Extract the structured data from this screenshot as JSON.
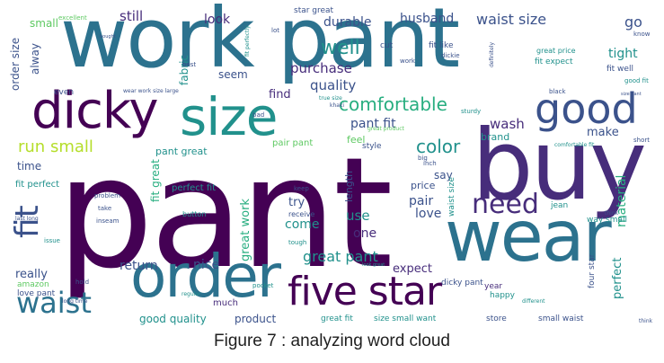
{
  "figure": {
    "caption": "Figure 7 : analyzing word cloud"
  },
  "word_cloud": {
    "palette": {
      "dark_purple": "#440154",
      "purple": "#472d7b",
      "blue": "#3b528b",
      "teal_blue": "#2c728e",
      "teal": "#21918c",
      "green_teal": "#28ae80",
      "green": "#5ec962",
      "lime": "#addc30",
      "yellow": "#b5de2b"
    },
    "words": [
      {
        "text": "pant",
        "color": "#440154"
      },
      {
        "text": "work pant",
        "color": "#2c728e"
      },
      {
        "text": "buy",
        "color": "#472d7b"
      },
      {
        "text": "wear",
        "color": "#2c728e"
      },
      {
        "text": "order",
        "color": "#2c728e"
      },
      {
        "text": "size",
        "color": "#21918c"
      },
      {
        "text": "dicky",
        "color": "#440154"
      },
      {
        "text": "five star",
        "color": "#440154"
      },
      {
        "text": "good",
        "color": "#3b528b"
      },
      {
        "text": "fit",
        "color": "#3b528b"
      },
      {
        "text": "waist",
        "color": "#2c728e"
      },
      {
        "text": "need",
        "color": "#472d7b"
      },
      {
        "text": "comfortable",
        "color": "#28ae80"
      },
      {
        "text": "color",
        "color": "#21918c"
      },
      {
        "text": "great pant",
        "color": "#21918c"
      },
      {
        "text": "run small",
        "color": "#b5de2b"
      },
      {
        "text": "well",
        "color": "#21918c"
      },
      {
        "text": "purchase",
        "color": "#472d7b"
      },
      {
        "text": "quality",
        "color": "#3b528b"
      },
      {
        "text": "pant fit",
        "color": "#3b528b"
      },
      {
        "text": "wash",
        "color": "#472d7b"
      },
      {
        "text": "waist size",
        "color": "#3b528b"
      },
      {
        "text": "durable",
        "color": "#3b528b"
      },
      {
        "text": "look",
        "color": "#472d7b"
      },
      {
        "text": "still",
        "color": "#472d7b"
      },
      {
        "text": "small",
        "color": "#5ec962"
      },
      {
        "text": "husband",
        "color": "#3b528b"
      },
      {
        "text": "star great",
        "color": "#3b528b"
      },
      {
        "text": "go",
        "color": "#3b528b"
      },
      {
        "text": "tight",
        "color": "#21918c"
      },
      {
        "text": "make",
        "color": "#3b528b"
      },
      {
        "text": "brand",
        "color": "#21918c"
      },
      {
        "text": "love",
        "color": "#3b528b"
      },
      {
        "text": "pair",
        "color": "#3b528b"
      },
      {
        "text": "use",
        "color": "#21918c"
      },
      {
        "text": "one",
        "color": "#472d7b"
      },
      {
        "text": "come",
        "color": "#21918c"
      },
      {
        "text": "try",
        "color": "#3b528b"
      },
      {
        "text": "return",
        "color": "#3b528b"
      },
      {
        "text": "nice",
        "color": "#3b528b"
      },
      {
        "text": "really",
        "color": "#3b528b"
      },
      {
        "text": "time",
        "color": "#3b528b"
      },
      {
        "text": "find",
        "color": "#472d7b"
      },
      {
        "text": "seem",
        "color": "#3b528b"
      },
      {
        "text": "fabric",
        "color": "#21918c"
      },
      {
        "text": "alway",
        "color": "#3b528b"
      },
      {
        "text": "order size",
        "color": "#3b528b"
      },
      {
        "text": "great work",
        "color": "#28ae80"
      },
      {
        "text": "expect",
        "color": "#472d7b"
      },
      {
        "text": "good quality",
        "color": "#21918c"
      },
      {
        "text": "product",
        "color": "#3b528b"
      },
      {
        "text": "perfect",
        "color": "#21918c"
      },
      {
        "text": "material",
        "color": "#28ae80"
      },
      {
        "text": "say",
        "color": "#3b528b"
      },
      {
        "text": "length",
        "color": "#3b528b"
      },
      {
        "text": "feel",
        "color": "#5ec962"
      },
      {
        "text": "pant great",
        "color": "#21918c"
      },
      {
        "text": "fit great",
        "color": "#28ae80"
      },
      {
        "text": "perfect fit",
        "color": "#21918c"
      },
      {
        "text": "fit perfect",
        "color": "#21918c"
      },
      {
        "text": "waist size",
        "color": "#21918c"
      },
      {
        "text": "pair pant",
        "color": "#5ec962"
      },
      {
        "text": "love pant",
        "color": "#3b528b"
      },
      {
        "text": "amazon",
        "color": "#5ec962"
      },
      {
        "text": "price",
        "color": "#3b528b"
      },
      {
        "text": "style",
        "color": "#3b528b"
      },
      {
        "text": "dicky pant",
        "color": "#3b528b"
      },
      {
        "text": "size small want",
        "color": "#21918c"
      },
      {
        "text": "small waist",
        "color": "#3b528b"
      },
      {
        "text": "store",
        "color": "#3b528b"
      },
      {
        "text": "great fit",
        "color": "#21918c"
      },
      {
        "text": "year",
        "color": "#472d7b"
      },
      {
        "text": "happy",
        "color": "#21918c"
      },
      {
        "text": "much",
        "color": "#472d7b"
      },
      {
        "text": "regular",
        "color": "#21918c"
      },
      {
        "text": "hold",
        "color": "#3b528b"
      },
      {
        "text": "pocket",
        "color": "#21918c"
      },
      {
        "text": "button",
        "color": "#21918c"
      },
      {
        "text": "inseam",
        "color": "#3b528b"
      },
      {
        "text": "jean",
        "color": "#21918c"
      },
      {
        "text": "fit well",
        "color": "#3b528b"
      },
      {
        "text": "four star",
        "color": "#3b528b"
      },
      {
        "text": "fit expect",
        "color": "#21918c"
      },
      {
        "text": "great price",
        "color": "#21918c"
      },
      {
        "text": "good fit",
        "color": "#21918c"
      },
      {
        "text": "even",
        "color": "#3b528b"
      },
      {
        "text": "best",
        "color": "#3b528b"
      },
      {
        "text": "fit like",
        "color": "#3b528b"
      },
      {
        "text": "cut",
        "color": "#3b528b"
      },
      {
        "text": "work",
        "color": "#3b528b"
      },
      {
        "text": "lot",
        "color": "#3b528b"
      },
      {
        "text": "know",
        "color": "#3b528b"
      },
      {
        "text": "true size",
        "color": "#21918c"
      },
      {
        "text": "keep",
        "color": "#3b528b"
      },
      {
        "text": "tough",
        "color": "#21918c"
      },
      {
        "text": "receive",
        "color": "#3b528b"
      },
      {
        "text": "issue",
        "color": "#21918c"
      },
      {
        "text": "problem",
        "color": "#3b528b"
      },
      {
        "text": "take",
        "color": "#3b528b"
      },
      {
        "text": "way small",
        "color": "#21918c"
      },
      {
        "text": "short",
        "color": "#3b528b"
      },
      {
        "text": "black",
        "color": "#3b528b"
      },
      {
        "text": "big",
        "color": "#3b528b"
      },
      {
        "text": "think",
        "color": "#3b528b"
      },
      {
        "text": "think",
        "color": "#3b528b"
      },
      {
        "text": "wear work size large",
        "color": "#3b528b"
      },
      {
        "text": "fit perfectly",
        "color": "#21918c"
      },
      {
        "text": "excellent",
        "color": "#5ec962"
      },
      {
        "text": "definitely",
        "color": "#3b528b"
      },
      {
        "text": "dickie",
        "color": "#3b528b"
      },
      {
        "text": "inch",
        "color": "#3b528b"
      },
      {
        "text": "khaki",
        "color": "#3b528b"
      },
      {
        "text": "bad",
        "color": "#3b528b"
      },
      {
        "text": "sturdy",
        "color": "#21918c"
      },
      {
        "text": "great product",
        "color": "#5ec962"
      },
      {
        "text": "different",
        "color": "#21918c"
      },
      {
        "text": "comfortable fit",
        "color": "#21918c"
      },
      {
        "text": "last long",
        "color": "#3b528b"
      },
      {
        "text": "long time",
        "color": "#3b528b"
      },
      {
        "text": "look great",
        "color": "#21918c"
      },
      {
        "text": "bought",
        "color": "#3b528b"
      },
      {
        "text": "size pant",
        "color": "#3b528b"
      }
    ]
  }
}
